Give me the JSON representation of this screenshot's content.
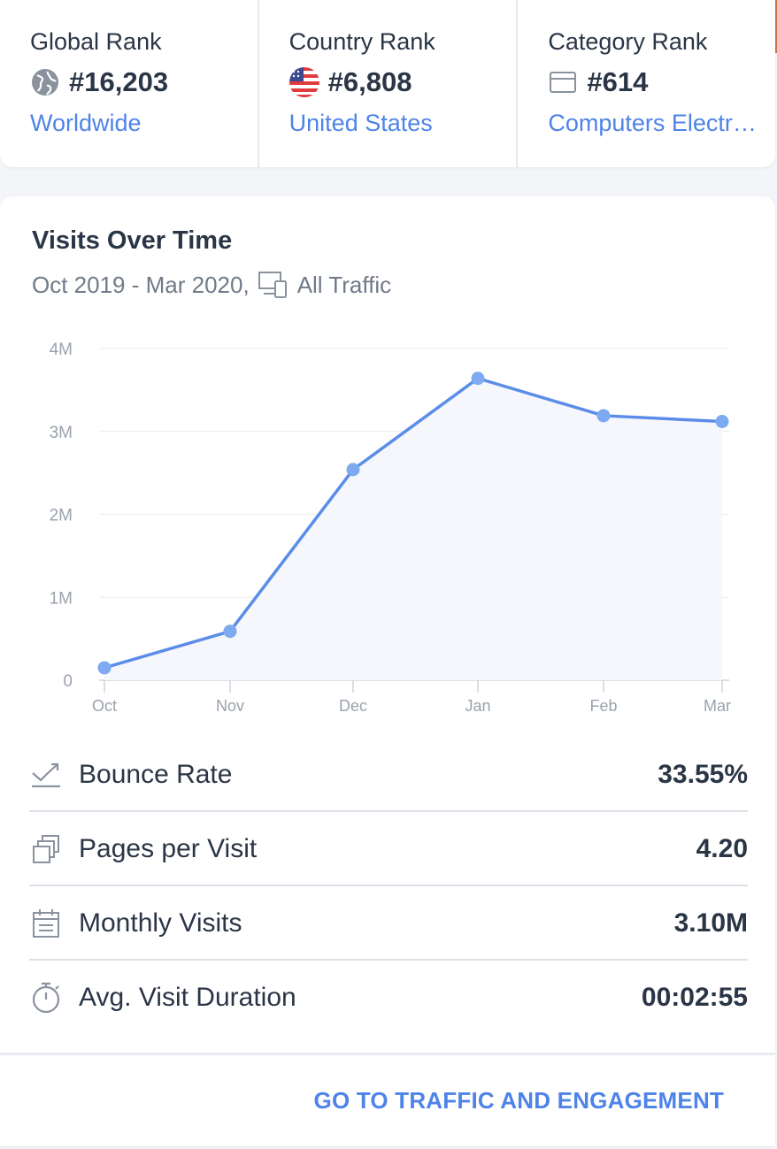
{
  "ranks": [
    {
      "title": "Global Rank",
      "value": "#16,203",
      "link": "Worldwide",
      "icon": "globe-icon"
    },
    {
      "title": "Country Rank",
      "value": "#6,808",
      "link": "United States",
      "icon": "us-flag-icon"
    },
    {
      "title": "Category Rank",
      "value": "#614",
      "link": "Computers Electr…",
      "icon": "category-icon"
    }
  ],
  "visits": {
    "title": "Visits Over Time",
    "date_range": "Oct 2019 - Mar 2020,",
    "traffic": "All Traffic",
    "traffic_icon": "devices-icon"
  },
  "chart_data": {
    "type": "area",
    "categories": [
      "Oct",
      "Nov",
      "Dec",
      "Jan",
      "Feb",
      "Mar"
    ],
    "values": [
      150000,
      590000,
      2540000,
      3640000,
      3190000,
      3120000
    ],
    "yticks": [
      "0",
      "1M",
      "2M",
      "3M",
      "4M"
    ],
    "ylim": [
      0,
      4000000
    ],
    "grid": true,
    "line_color": "#5b8de8",
    "point_color": "#7daaf0",
    "fill_color": "#f5f7fc"
  },
  "metrics": [
    {
      "label": "Bounce Rate",
      "value": "33.55%",
      "icon": "bounce-rate-icon"
    },
    {
      "label": "Pages per Visit",
      "value": "4.20",
      "icon": "pages-icon"
    },
    {
      "label": "Monthly Visits",
      "value": "3.10M",
      "icon": "calendar-icon"
    },
    {
      "label": "Avg. Visit Duration",
      "value": "00:02:55",
      "icon": "stopwatch-icon"
    }
  ],
  "cta": "GO TO TRAFFIC AND ENGAGEMENT"
}
